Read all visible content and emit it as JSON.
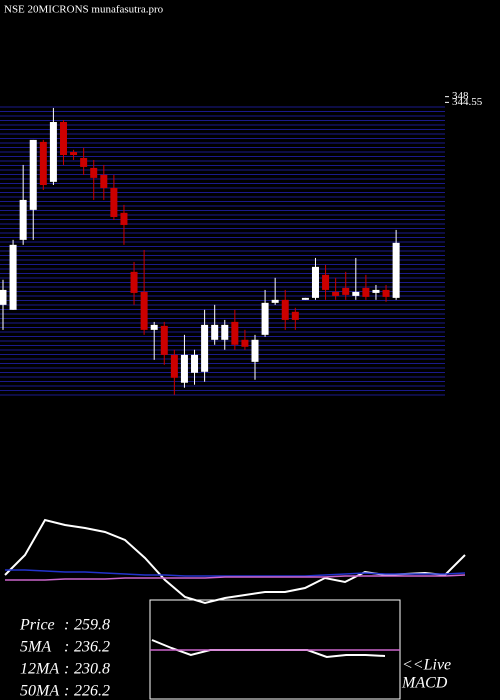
{
  "chart_data": [
    {
      "type": "candlestick",
      "title": "NSE 20MICRONS munafasutra.pro",
      "open": [
        222.4,
        219.4,
        261.6,
        279.7,
        320.7,
        296.6,
        332.7,
        314.6,
        311.0,
        305.0,
        300.8,
        292.9,
        277.9,
        242.3,
        230.2,
        207.3,
        209.7,
        192.2,
        175.4,
        181.4,
        182.0,
        201.3,
        201.3,
        212.1,
        201.3,
        188.0,
        204.3,
        223.6,
        225.4,
        218.2,
        225.4,
        226.6,
        240.5,
        230.2,
        232.6,
        227.8,
        232.6,
        229.6,
        231.4,
        226.6
      ],
      "high": [
        237.5,
        261.6,
        306.8,
        321.9,
        321.9,
        341.2,
        333.9,
        315.9,
        317.1,
        309.8,
        306.8,
        300.8,
        282.7,
        248.3,
        255.5,
        212.1,
        212.1,
        195.3,
        204.3,
        195.3,
        219.4,
        222.4,
        213.3,
        219.4,
        207.3,
        204.3,
        231.4,
        238.7,
        231.4,
        220.6,
        226.6,
        250.7,
        246.5,
        238.7,
        242.3,
        250.7,
        240.5,
        234.4,
        234.4,
        267.6
      ],
      "low": [
        207.3,
        219.4,
        258.6,
        261.6,
        291.7,
        294.7,
        306.8,
        309.8,
        300.8,
        285.7,
        285.7,
        273.6,
        258.6,
        222.4,
        204.3,
        189.2,
        186.2,
        168.1,
        172.4,
        174.2,
        176.0,
        198.3,
        195.3,
        195.3,
        195.3,
        177.2,
        203.1,
        222.4,
        207.3,
        207.3,
        225.4,
        225.4,
        225.4,
        225.4,
        225.4,
        225.4,
        225.4,
        225.4,
        224.2,
        225.4
      ],
      "close": [
        231.4,
        258.6,
        285.7,
        321.9,
        294.7,
        332.7,
        312.8,
        312.8,
        305.6,
        299.0,
        292.9,
        275.4,
        270.6,
        229.6,
        207.3,
        210.3,
        192.2,
        178.4,
        192.2,
        192.2,
        210.3,
        210.3,
        210.3,
        198.3,
        197.1,
        201.3,
        223.6,
        225.4,
        213.3,
        213.3,
        226.6,
        245.3,
        231.4,
        227.8,
        228.4,
        230.2,
        227.2,
        231.4,
        227.2,
        259.8
      ],
      "up_color": "#ffffff",
      "down_color": "#cc0000",
      "grid_color": "#1a1a8c",
      "ylim": [
        168,
        349
      ],
      "yticks": [
        348,
        344.55
      ]
    },
    {
      "type": "line",
      "ylim": [
        -10,
        100
      ],
      "series": [
        {
          "color": "#ffffff",
          "values": [
            25,
            45,
            80,
            75,
            72,
            68,
            60,
            42,
            20,
            3,
            -3,
            2,
            5,
            8,
            8,
            12,
            22,
            18,
            28,
            25,
            26,
            27,
            25,
            45
          ]
        },
        {
          "color": "#2233cc",
          "values": [
            30,
            30,
            29,
            28,
            28,
            27,
            26,
            25,
            25,
            24,
            24,
            24,
            24,
            24,
            24,
            24,
            25,
            26,
            27,
            26,
            26,
            26,
            26,
            27
          ]
        },
        {
          "color": "#cc66cc",
          "values": [
            20,
            20,
            20,
            21,
            21,
            21,
            22,
            22,
            22,
            22,
            22,
            23,
            23,
            23,
            23,
            23,
            23,
            24,
            24,
            24,
            24,
            24,
            24,
            25
          ]
        }
      ],
      "stats": [
        {
          "label": "Price",
          "separator": ":",
          "value": 259.8
        },
        {
          "label": "5MA",
          "separator": ":",
          "value": 236.2
        },
        {
          "label": "12MA",
          "separator": ":",
          "value": 230.8
        },
        {
          "label": "50MA",
          "separator": ":",
          "value": 226.2
        }
      ]
    },
    {
      "type": "line",
      "title": "<<Live",
      "subtitle": "MACD",
      "ylim": [
        0,
        100
      ],
      "series": [
        {
          "color": "#ffffff",
          "values": [
            60,
            52,
            45,
            50,
            50,
            50,
            50,
            50,
            50,
            43,
            45,
            45,
            44
          ]
        },
        {
          "color": "#cc66cc",
          "values": [
            50,
            50,
            50,
            50,
            50,
            50,
            50,
            50,
            50,
            50,
            50,
            50,
            50
          ]
        }
      ]
    }
  ]
}
